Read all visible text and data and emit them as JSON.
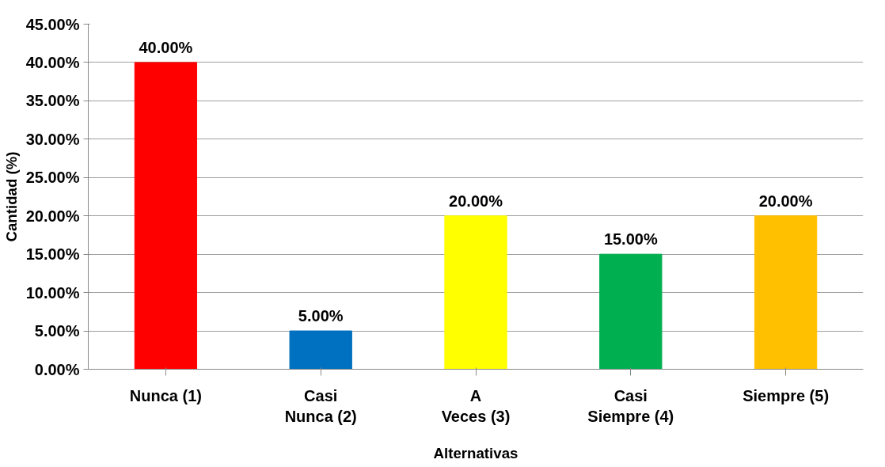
{
  "chart_data": {
    "type": "bar",
    "xlabel": "Alternativas",
    "ylabel": "Cantidad (%)",
    "categories": [
      "Nunca (1)",
      "Casi\nNunca (2)",
      "A\nVeces (3)",
      "Casi\nSiempre (4)",
      "Siempre (5)"
    ],
    "values": [
      40,
      5,
      20,
      15,
      20
    ],
    "colors": [
      "#ff0000",
      "#0070c0",
      "#ffff00",
      "#00b050",
      "#ffc000"
    ],
    "value_labels": [
      "40.00%",
      "5.00%",
      "20.00%",
      "15.00%",
      "20.00%"
    ],
    "ylim": [
      0,
      45
    ],
    "yticks": [
      {
        "value": 0,
        "label": "0.00%"
      },
      {
        "value": 5,
        "label": "5.00%"
      },
      {
        "value": 10,
        "label": "10.00%"
      },
      {
        "value": 15,
        "label": "15.00%"
      },
      {
        "value": 20,
        "label": "20.00%"
      },
      {
        "value": 25,
        "label": "25.00%"
      },
      {
        "value": 30,
        "label": "30.00%"
      },
      {
        "value": 35,
        "label": "35.00%"
      },
      {
        "value": 40,
        "label": "40.00%"
      },
      {
        "value": 45,
        "label": "45.00%"
      }
    ],
    "grid": "y"
  }
}
